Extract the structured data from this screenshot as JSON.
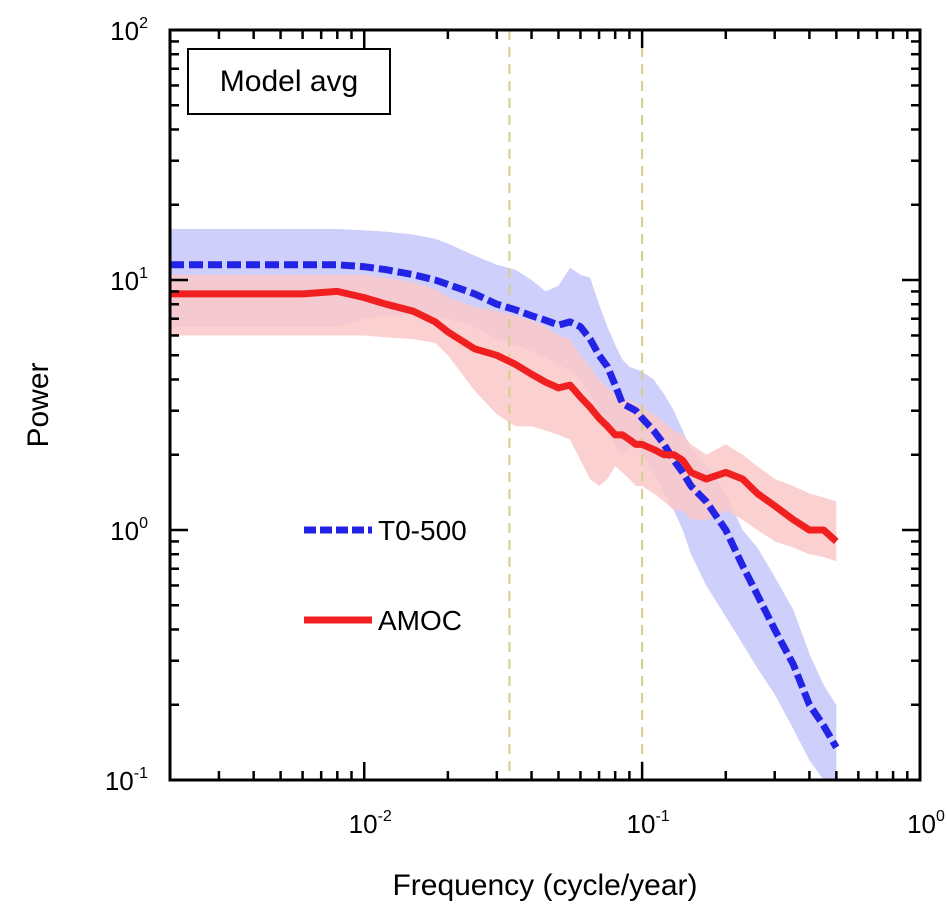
{
  "chart_data": {
    "type": "line",
    "title": "Model avg",
    "xlabel": "Frequency (cycle/year)",
    "ylabel": "Power",
    "xscale": "log",
    "yscale": "log",
    "xlim": [
      0.002,
      1
    ],
    "ylim": [
      0.1,
      100
    ],
    "grid": false,
    "legend_placement": "left-center",
    "x_ticks": [
      {
        "base": "10",
        "exp": "-2",
        "value": 0.01
      },
      {
        "base": "10",
        "exp": "-1",
        "value": 0.1
      },
      {
        "base": "10",
        "exp": "0",
        "value": 1
      }
    ],
    "y_ticks": [
      {
        "base": "10",
        "exp": "-1",
        "value": 0.1
      },
      {
        "base": "10",
        "exp": "0",
        "value": 1
      },
      {
        "base": "10",
        "exp": "1",
        "value": 10
      },
      {
        "base": "10",
        "exp": "2",
        "value": 100
      }
    ],
    "reference_lines": [
      {
        "axis": "x",
        "value": 0.0333,
        "style": "dashed",
        "color": "#d4cf8a"
      },
      {
        "axis": "x",
        "value": 0.1,
        "style": "dashed",
        "color": "#d4cf8a"
      }
    ],
    "series": [
      {
        "name": "T0-500",
        "color": "#2323e6",
        "band_color": "#c7c7fa",
        "line_style": "dashed",
        "x": [
          0.002,
          0.004,
          0.006,
          0.008,
          0.01,
          0.012,
          0.015,
          0.018,
          0.02,
          0.025,
          0.03,
          0.035,
          0.04,
          0.045,
          0.05,
          0.055,
          0.06,
          0.065,
          0.07,
          0.075,
          0.08,
          0.085,
          0.09,
          0.095,
          0.1,
          0.11,
          0.12,
          0.13,
          0.14,
          0.15,
          0.17,
          0.2,
          0.23,
          0.26,
          0.3,
          0.35,
          0.4,
          0.45,
          0.5
        ],
        "y": [
          11.5,
          11.5,
          11.5,
          11.5,
          11.3,
          11.0,
          10.5,
          10.0,
          9.6,
          8.8,
          8.0,
          7.6,
          7.2,
          6.9,
          6.6,
          6.8,
          6.5,
          5.8,
          5.0,
          4.5,
          3.8,
          3.2,
          3.1,
          3.0,
          2.8,
          2.5,
          2.2,
          1.9,
          1.7,
          1.5,
          1.3,
          1.0,
          0.72,
          0.55,
          0.4,
          0.29,
          0.2,
          0.165,
          0.135
        ],
        "upper": [
          16.0,
          16.0,
          16.0,
          16.0,
          15.8,
          15.6,
          15.2,
          14.6,
          14.0,
          12.5,
          11.5,
          11.0,
          10.0,
          9.0,
          9.5,
          11.2,
          10.5,
          10.2,
          8.0,
          6.5,
          5.5,
          4.8,
          4.5,
          4.4,
          4.3,
          4.0,
          3.5,
          3.0,
          2.5,
          2.1,
          1.8,
          1.4,
          1.0,
          0.85,
          0.65,
          0.48,
          0.32,
          0.24,
          0.2
        ],
        "lower": [
          6.5,
          6.5,
          6.5,
          6.5,
          7.0,
          7.2,
          7.3,
          7.2,
          7.0,
          6.5,
          5.8,
          5.5,
          5.2,
          4.9,
          4.6,
          4.3,
          4.0,
          3.5,
          3.0,
          2.5,
          2.2,
          2.0,
          2.1,
          2.2,
          2.0,
          1.7,
          1.4,
          1.2,
          1.0,
          0.8,
          0.6,
          0.45,
          0.35,
          0.28,
          0.22,
          0.16,
          0.12,
          0.1,
          0.095
        ]
      },
      {
        "name": "AMOC",
        "color": "#f02020",
        "band_color": "#fac8c8",
        "line_style": "solid",
        "x": [
          0.002,
          0.004,
          0.006,
          0.008,
          0.01,
          0.012,
          0.015,
          0.018,
          0.02,
          0.025,
          0.03,
          0.035,
          0.04,
          0.045,
          0.05,
          0.055,
          0.06,
          0.065,
          0.07,
          0.075,
          0.08,
          0.085,
          0.09,
          0.095,
          0.1,
          0.11,
          0.12,
          0.13,
          0.14,
          0.15,
          0.17,
          0.2,
          0.23,
          0.26,
          0.3,
          0.35,
          0.4,
          0.45,
          0.5
        ],
        "y": [
          8.8,
          8.8,
          8.8,
          9.0,
          8.5,
          8.0,
          7.5,
          6.8,
          6.2,
          5.3,
          5.0,
          4.6,
          4.2,
          3.9,
          3.7,
          3.8,
          3.4,
          3.1,
          2.8,
          2.6,
          2.4,
          2.4,
          2.3,
          2.2,
          2.2,
          2.1,
          2.0,
          2.0,
          1.9,
          1.7,
          1.6,
          1.7,
          1.6,
          1.4,
          1.25,
          1.1,
          1.0,
          1.0,
          0.9
        ],
        "upper": [
          10.5,
          10.5,
          10.5,
          10.5,
          10.5,
          10.2,
          9.8,
          9.2,
          8.5,
          7.8,
          7.5,
          7.2,
          6.9,
          6.5,
          6.0,
          5.8,
          5.0,
          4.5,
          4.0,
          3.7,
          3.5,
          3.4,
          3.3,
          3.2,
          3.1,
          2.9,
          2.7,
          2.5,
          2.4,
          2.2,
          2.0,
          2.2,
          2.0,
          1.8,
          1.6,
          1.5,
          1.4,
          1.35,
          1.3
        ],
        "lower": [
          6.0,
          6.0,
          6.0,
          6.0,
          6.0,
          5.9,
          5.8,
          5.6,
          5.0,
          3.6,
          2.9,
          2.6,
          2.6,
          2.5,
          2.4,
          2.3,
          1.9,
          1.6,
          1.5,
          1.6,
          1.8,
          1.7,
          1.6,
          1.5,
          1.5,
          1.4,
          1.3,
          1.2,
          1.2,
          1.1,
          1.1,
          1.2,
          1.1,
          1.0,
          0.9,
          0.85,
          0.8,
          0.78,
          0.75
        ]
      }
    ]
  }
}
